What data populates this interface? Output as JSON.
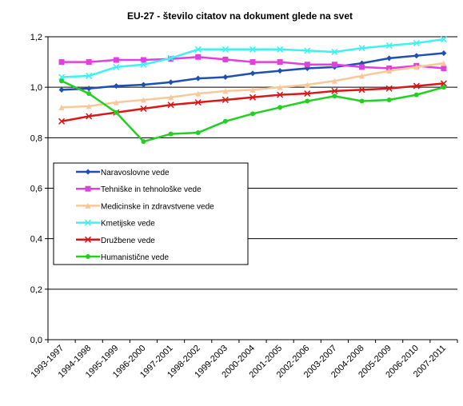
{
  "chart_data": {
    "type": "line",
    "title": "EU-27 - število citatov na dokument glede na svet",
    "xlabel": "",
    "ylabel": "",
    "ylim": [
      0,
      1.2
    ],
    "yticks": [
      "0,0",
      "0,2",
      "0,4",
      "0,6",
      "0,8",
      "1,0",
      "1,2"
    ],
    "grid": "horizontal",
    "legend_position": "middle-left",
    "categories": [
      "1993-1997",
      "1994-1998",
      "1995-1999",
      "1996-2000",
      "1997-2001",
      "1998-2002",
      "1999-2003",
      "2000-2004",
      "2001-2005",
      "2002-2006",
      "2003-2007",
      "2004-2008",
      "2005-2009",
      "2006-2010",
      "2007-2011"
    ],
    "series": [
      {
        "name": "Naravoslovne vede",
        "color": "#1f4fb5",
        "marker": "diamond",
        "values": [
          0.99,
          0.995,
          1.005,
          1.01,
          1.02,
          1.035,
          1.04,
          1.055,
          1.065,
          1.075,
          1.08,
          1.095,
          1.115,
          1.125,
          1.135
        ]
      },
      {
        "name": "Tehniške in tehnološke vede",
        "color": "#e040e0",
        "marker": "square",
        "values": [
          1.1,
          1.1,
          1.108,
          1.108,
          1.112,
          1.12,
          1.11,
          1.1,
          1.1,
          1.09,
          1.09,
          1.08,
          1.075,
          1.085,
          1.075
        ]
      },
      {
        "name": "Medicinske in zdravstvene vede",
        "color": "#f8c898",
        "marker": "triangle",
        "values": [
          0.92,
          0.925,
          0.94,
          0.95,
          0.96,
          0.975,
          0.985,
          0.99,
          1.0,
          1.01,
          1.025,
          1.045,
          1.065,
          1.08,
          1.095
        ]
      },
      {
        "name": "Kmetijske vede",
        "color": "#3ef2f2",
        "marker": "x",
        "values": [
          1.04,
          1.045,
          1.08,
          1.09,
          1.115,
          1.15,
          1.15,
          1.15,
          1.15,
          1.145,
          1.14,
          1.155,
          1.165,
          1.175,
          1.19
        ]
      },
      {
        "name": "Družbene vede",
        "color": "#d81818",
        "marker": "x",
        "values": [
          0.865,
          0.885,
          0.9,
          0.915,
          0.93,
          0.94,
          0.95,
          0.96,
          0.97,
          0.975,
          0.985,
          0.99,
          0.995,
          1.005,
          1.015
        ]
      },
      {
        "name": "Humanistične vede",
        "color": "#22d022",
        "marker": "circle",
        "values": [
          1.025,
          0.975,
          0.9,
          0.785,
          0.815,
          0.82,
          0.865,
          0.895,
          0.92,
          0.945,
          0.965,
          0.945,
          0.95,
          0.97,
          1.0
        ]
      }
    ]
  }
}
